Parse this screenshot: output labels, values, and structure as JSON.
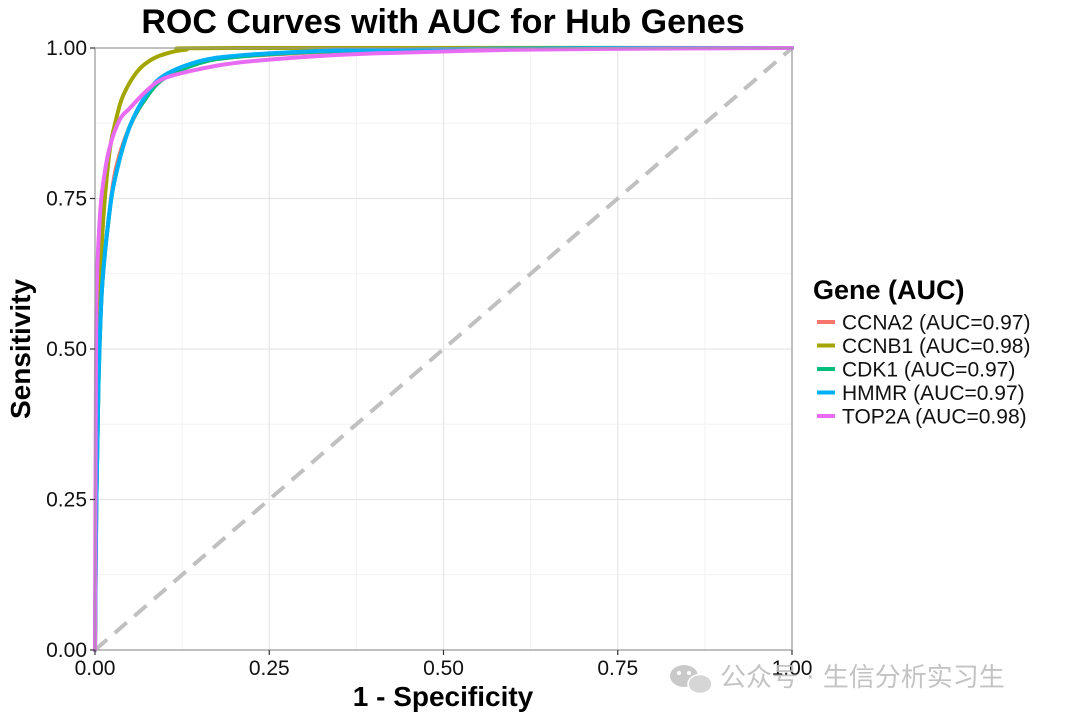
{
  "chart_data": {
    "type": "line",
    "title": "ROC Curves with AUC for Hub Genes",
    "xlabel": "1 - Specificity",
    "ylabel": "Sensitivity",
    "xlim": [
      0,
      1
    ],
    "ylim": [
      0,
      1
    ],
    "x_ticks": [
      0,
      0.25,
      0.5,
      0.75,
      1
    ],
    "y_ticks": [
      0,
      0.25,
      0.5,
      0.75,
      1
    ],
    "x_tick_labels": [
      "0.00",
      "0.25",
      "0.50",
      "0.75",
      "1.00"
    ],
    "y_tick_labels": [
      "0.00",
      "0.25",
      "0.50",
      "0.75",
      "1.00"
    ],
    "grid": true,
    "legend_title": "Gene (AUC)",
    "legend_position": "right",
    "reference_line": {
      "from": [
        0,
        0
      ],
      "to": [
        1,
        1
      ],
      "style": "dashed",
      "color": "#c0c0c0"
    },
    "series": [
      {
        "name": "CCNA2 (AUC=0.97)",
        "color": "#F8766D",
        "points": [
          [
            0,
            0
          ],
          [
            0.002,
            0.25
          ],
          [
            0.005,
            0.45
          ],
          [
            0.01,
            0.6
          ],
          [
            0.02,
            0.72
          ],
          [
            0.03,
            0.8
          ],
          [
            0.05,
            0.87
          ],
          [
            0.075,
            0.92
          ],
          [
            0.1,
            0.95
          ],
          [
            0.15,
            0.975
          ],
          [
            0.2,
            0.985
          ],
          [
            0.3,
            0.992
          ],
          [
            0.4,
            0.996
          ],
          [
            0.6,
            0.999
          ],
          [
            0.8,
            1.0
          ],
          [
            1,
            1
          ]
        ]
      },
      {
        "name": "CCNB1 (AUC=0.98)",
        "color": "#A3A500",
        "points": [
          [
            0,
            0
          ],
          [
            0.002,
            0.3
          ],
          [
            0.005,
            0.5
          ],
          [
            0.01,
            0.68
          ],
          [
            0.02,
            0.82
          ],
          [
            0.03,
            0.88
          ],
          [
            0.04,
            0.92
          ],
          [
            0.06,
            0.96
          ],
          [
            0.08,
            0.98
          ],
          [
            0.1,
            0.99
          ],
          [
            0.13,
            0.997
          ],
          [
            0.2,
            1.0
          ],
          [
            1,
            1
          ]
        ]
      },
      {
        "name": "CDK1 (AUC=0.97)",
        "color": "#00BF7D",
        "points": [
          [
            0,
            0
          ],
          [
            0.002,
            0.25
          ],
          [
            0.005,
            0.44
          ],
          [
            0.01,
            0.6
          ],
          [
            0.02,
            0.72
          ],
          [
            0.03,
            0.79
          ],
          [
            0.05,
            0.87
          ],
          [
            0.075,
            0.92
          ],
          [
            0.1,
            0.95
          ],
          [
            0.15,
            0.975
          ],
          [
            0.2,
            0.985
          ],
          [
            0.3,
            0.993
          ],
          [
            0.4,
            0.996
          ],
          [
            0.6,
            0.999
          ],
          [
            0.8,
            1.0
          ],
          [
            1,
            1
          ]
        ]
      },
      {
        "name": "HMMR (AUC=0.97)",
        "color": "#00B0F6",
        "points": [
          [
            0,
            0
          ],
          [
            0.002,
            0.25
          ],
          [
            0.005,
            0.44
          ],
          [
            0.01,
            0.6
          ],
          [
            0.02,
            0.72
          ],
          [
            0.03,
            0.79
          ],
          [
            0.05,
            0.87
          ],
          [
            0.075,
            0.925
          ],
          [
            0.1,
            0.955
          ],
          [
            0.15,
            0.978
          ],
          [
            0.2,
            0.987
          ],
          [
            0.3,
            0.994
          ],
          [
            0.4,
            0.997
          ],
          [
            0.6,
            0.999
          ],
          [
            0.8,
            1.0
          ],
          [
            1,
            1
          ]
        ]
      },
      {
        "name": "TOP2A (AUC=0.98)",
        "color": "#E76BF3",
        "points": [
          [
            0,
            0
          ],
          [
            0.0015,
            0.5
          ],
          [
            0.003,
            0.62
          ],
          [
            0.006,
            0.7
          ],
          [
            0.01,
            0.76
          ],
          [
            0.02,
            0.83
          ],
          [
            0.035,
            0.88
          ],
          [
            0.05,
            0.9
          ],
          [
            0.075,
            0.93
          ],
          [
            0.1,
            0.95
          ],
          [
            0.15,
            0.965
          ],
          [
            0.2,
            0.975
          ],
          [
            0.3,
            0.985
          ],
          [
            0.4,
            0.991
          ],
          [
            0.6,
            0.997
          ],
          [
            0.8,
            0.999
          ],
          [
            1,
            1
          ]
        ]
      }
    ]
  },
  "watermark": {
    "text": "公众号 · 生信分析实习生",
    "icon": "wechat-icon"
  }
}
